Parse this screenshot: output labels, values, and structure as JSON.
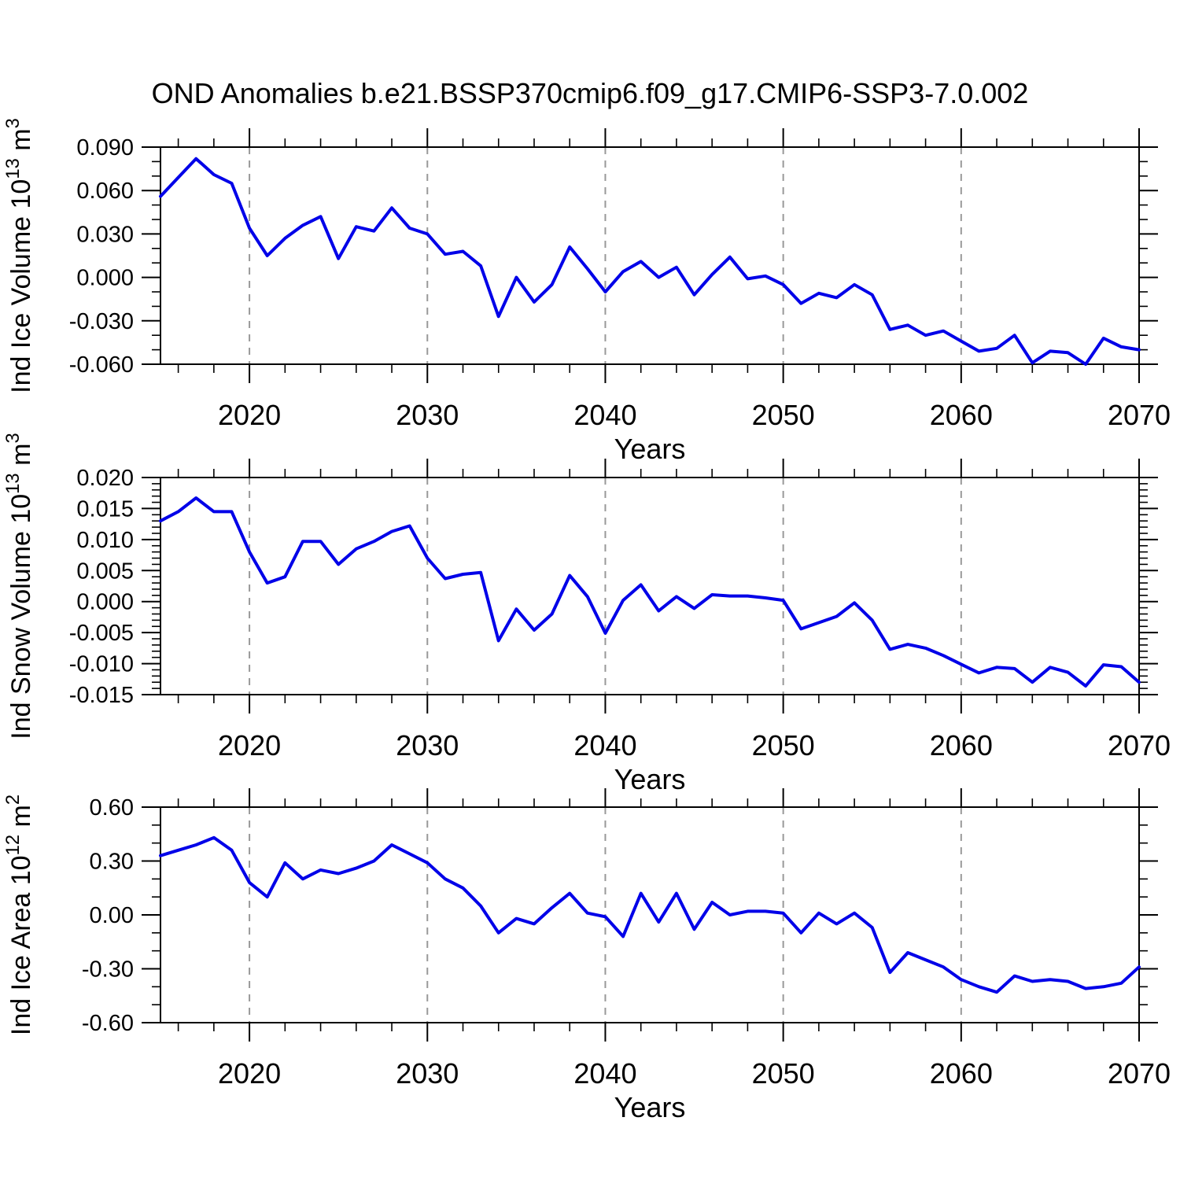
{
  "title": "OND Anomalies b.e21.BSSP370cmip6.f09_g17.CMIP6-SSP3-7.0.002",
  "colors": {
    "line": "#0000e8",
    "grid": "#999999",
    "frame": "#000000",
    "text": "#000000",
    "background": "#ffffff"
  },
  "x_axis": {
    "label": "Years",
    "start": 2015,
    "end": 2070,
    "major_tick_years": [
      2020,
      2030,
      2040,
      2050,
      2060,
      2070
    ],
    "minor_tick_step": 2,
    "grid_years": [
      2020,
      2030,
      2040,
      2050,
      2060
    ]
  },
  "chart_data": [
    {
      "id": "ice-volume",
      "type": "line",
      "title": "",
      "ylabel": "Ind Ice Volume 10^13^ m^3^",
      "xlabel": "Years",
      "ylim": [
        -0.06,
        0.09
      ],
      "ymajor": 0.03,
      "yminor": 0.01,
      "ydecimals": 3,
      "grid": "vertical-dashed",
      "legend": "none",
      "x_start": 2015,
      "x_end": 2070,
      "values": [
        0.056,
        0.069,
        0.082,
        0.071,
        0.065,
        0.034,
        0.015,
        0.027,
        0.036,
        0.042,
        0.013,
        0.035,
        0.032,
        0.048,
        0.034,
        0.03,
        0.016,
        0.018,
        0.008,
        -0.027,
        0.0,
        -0.017,
        -0.005,
        0.021,
        0.006,
        -0.01,
        0.004,
        0.011,
        0.0,
        0.007,
        -0.012,
        0.002,
        0.014,
        -0.001,
        0.001,
        -0.005,
        -0.018,
        -0.011,
        -0.014,
        -0.005,
        -0.012,
        -0.036,
        -0.033,
        -0.04,
        -0.037,
        -0.044,
        -0.051,
        -0.049,
        -0.04,
        -0.059,
        -0.051,
        -0.052,
        -0.06,
        -0.042,
        -0.048,
        -0.05
      ]
    },
    {
      "id": "snow-volume",
      "type": "line",
      "title": "",
      "ylabel": "Ind Snow Volume 10^13^ m^3^",
      "xlabel": "Years",
      "ylim": [
        -0.015,
        0.02
      ],
      "ymajor": 0.005,
      "yminor": 0.001,
      "ydecimals": 3,
      "grid": "vertical-dashed",
      "legend": "none",
      "x_start": 2015,
      "x_end": 2070,
      "values": [
        0.013,
        0.0145,
        0.0167,
        0.0145,
        0.0145,
        0.008,
        0.003,
        0.004,
        0.0097,
        0.0097,
        0.006,
        0.0085,
        0.0097,
        0.0113,
        0.0122,
        0.007,
        0.0037,
        0.0044,
        0.0047,
        -0.0063,
        -0.0012,
        -0.0046,
        -0.002,
        0.0042,
        0.0008,
        -0.0051,
        0.0002,
        0.0027,
        -0.0015,
        0.0008,
        -0.0011,
        0.0011,
        0.0009,
        0.0009,
        0.0006,
        0.0002,
        -0.0044,
        -0.0034,
        -0.0024,
        -0.0002,
        -0.003,
        -0.0077,
        -0.0069,
        -0.0075,
        -0.0087,
        -0.0101,
        -0.0115,
        -0.0106,
        -0.0108,
        -0.013,
        -0.0106,
        -0.0114,
        -0.0136,
        -0.0102,
        -0.0105,
        -0.013
      ]
    },
    {
      "id": "ice-area",
      "type": "line",
      "title": "",
      "ylabel": "Ind Ice Area 10^12^ m^2^",
      "xlabel": "Years",
      "ylim": [
        -0.6,
        0.6
      ],
      "ymajor": 0.3,
      "yminor": 0.1,
      "ydecimals": 2,
      "grid": "vertical-dashed",
      "legend": "none",
      "x_start": 2015,
      "x_end": 2070,
      "values": [
        0.33,
        0.36,
        0.39,
        0.43,
        0.36,
        0.18,
        0.1,
        0.29,
        0.2,
        0.25,
        0.23,
        0.26,
        0.3,
        0.39,
        0.34,
        0.29,
        0.2,
        0.15,
        0.05,
        -0.1,
        -0.02,
        -0.05,
        0.04,
        0.12,
        0.01,
        -0.01,
        -0.12,
        0.12,
        -0.04,
        0.12,
        -0.08,
        0.07,
        0.0,
        0.02,
        0.02,
        0.01,
        -0.1,
        0.01,
        -0.05,
        0.01,
        -0.07,
        -0.32,
        -0.21,
        -0.25,
        -0.29,
        -0.36,
        -0.4,
        -0.43,
        -0.34,
        -0.37,
        -0.36,
        -0.37,
        -0.41,
        -0.4,
        -0.38,
        -0.29
      ]
    }
  ]
}
